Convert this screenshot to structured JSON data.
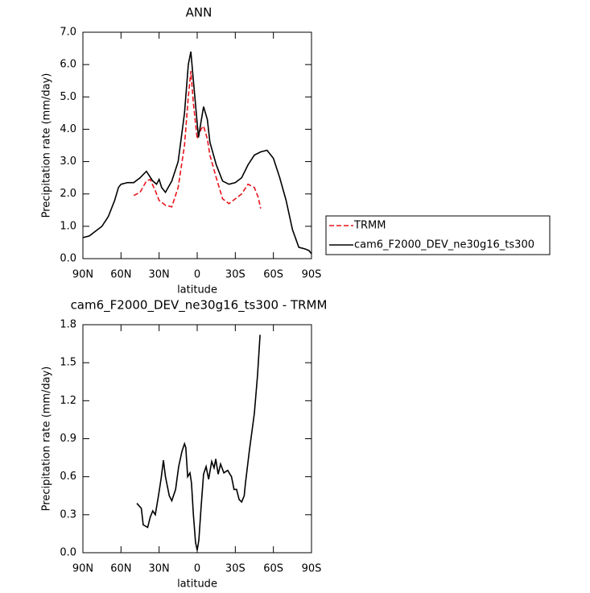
{
  "chart_data": [
    {
      "type": "line",
      "title": "ANN",
      "x_label": "latitude",
      "y_label": "Precipitation rate (mm/day)",
      "xlim": [
        90,
        -90
      ],
      "ylim": [
        0,
        7
      ],
      "xticks": [
        {
          "value": 90,
          "label": "90N"
        },
        {
          "value": 60,
          "label": "60N"
        },
        {
          "value": 30,
          "label": "30N"
        },
        0,
        {
          "value": -30,
          "label": "30S"
        },
        {
          "value": -60,
          "label": "60S"
        },
        {
          "value": -90,
          "label": "90S"
        }
      ],
      "yticks": [
        {
          "value": 0,
          "label": "0.0"
        },
        {
          "value": 1,
          "label": "1.0"
        },
        {
          "value": 2,
          "label": "2.0"
        },
        {
          "value": 3,
          "label": "3.0"
        },
        {
          "value": 4,
          "label": "4.0"
        },
        {
          "value": 5,
          "label": "5.0"
        },
        {
          "value": 6,
          "label": "6.0"
        },
        {
          "value": 7,
          "label": "7.0"
        }
      ],
      "legend": "right",
      "series": [
        {
          "name": "TRMM",
          "color": "#e8141c",
          "dash": "dashed",
          "x": [
            50,
            45,
            40,
            37,
            33,
            30,
            25,
            20,
            15,
            10,
            7,
            5,
            3,
            0,
            -3,
            -5,
            -8,
            -10,
            -15,
            -20,
            -25,
            -30,
            -35,
            -40,
            -45,
            -48,
            -50
          ],
          "values": [
            1.95,
            2.05,
            2.4,
            2.45,
            2.1,
            1.8,
            1.65,
            1.6,
            2.2,
            3.5,
            5.0,
            5.8,
            4.8,
            3.7,
            4.0,
            4.1,
            3.7,
            3.2,
            2.5,
            1.85,
            1.7,
            1.85,
            2.0,
            2.3,
            2.2,
            1.9,
            1.55
          ]
        },
        {
          "name": "cam6_F2000_DEV_ne30g16_ts300",
          "color": "#000000",
          "dash": "solid",
          "x": [
            90,
            85,
            80,
            75,
            70,
            65,
            62,
            60,
            55,
            50,
            45,
            40,
            35,
            32,
            30,
            28,
            25,
            20,
            15,
            10,
            7,
            5,
            3,
            -1,
            -5,
            -8,
            -10,
            -15,
            -20,
            -25,
            -30,
            -35,
            -40,
            -45,
            -50,
            -55,
            -60,
            -65,
            -70,
            -75,
            -80,
            -85,
            -88,
            -90
          ],
          "values": [
            0.65,
            0.7,
            0.85,
            1.0,
            1.3,
            1.8,
            2.2,
            2.3,
            2.35,
            2.35,
            2.5,
            2.7,
            2.4,
            2.3,
            2.45,
            2.2,
            2.05,
            2.4,
            3.0,
            4.5,
            6.0,
            6.4,
            5.5,
            3.75,
            4.7,
            4.3,
            3.6,
            2.9,
            2.4,
            2.3,
            2.35,
            2.5,
            2.9,
            3.2,
            3.3,
            3.35,
            3.1,
            2.5,
            1.8,
            0.9,
            0.35,
            0.3,
            0.25,
            0.15
          ]
        }
      ]
    },
    {
      "type": "line",
      "title": "cam6_F2000_DEV_ne30g16_ts300 - TRMM",
      "x_label": "latitude",
      "y_label": "Precipitation rate (mm/day)",
      "xlim": [
        90,
        -90
      ],
      "ylim": [
        0,
        1.8
      ],
      "xticks": [
        {
          "value": 90,
          "label": "90N"
        },
        {
          "value": 60,
          "label": "60N"
        },
        {
          "value": 30,
          "label": "30N"
        },
        0,
        {
          "value": -30,
          "label": "30S"
        },
        {
          "value": -60,
          "label": "60S"
        },
        {
          "value": -90,
          "label": "90S"
        }
      ],
      "yticks": [
        {
          "value": 0,
          "label": "0.0"
        },
        0.3,
        0.6,
        0.9,
        1.2,
        1.5,
        1.8
      ],
      "series": [
        {
          "color": "#000000",
          "dash": "solid",
          "x": [
            47.5,
            44,
            42.5,
            39,
            37,
            35,
            33,
            30.5,
            28.5,
            26.6,
            25,
            22,
            20,
            17,
            14.6,
            12,
            10,
            9,
            7.5,
            5.7,
            4.5,
            3,
            1.3,
            0,
            -1.3,
            -3,
            -5,
            -7,
            -9,
            -11.4,
            -13.3,
            -14.6,
            -16.5,
            -18.4,
            -21,
            -24,
            -27,
            -29,
            -31,
            -33,
            -35,
            -37,
            -38,
            -41,
            -45,
            -47.5,
            -49.5
          ],
          "values": [
            0.39,
            0.35,
            0.22,
            0.2,
            0.28,
            0.33,
            0.3,
            0.45,
            0.58,
            0.73,
            0.6,
            0.45,
            0.41,
            0.5,
            0.68,
            0.8,
            0.86,
            0.83,
            0.6,
            0.63,
            0.55,
            0.3,
            0.08,
            0.02,
            0.1,
            0.35,
            0.62,
            0.68,
            0.58,
            0.72,
            0.67,
            0.74,
            0.62,
            0.7,
            0.63,
            0.65,
            0.6,
            0.5,
            0.5,
            0.42,
            0.4,
            0.45,
            0.55,
            0.8,
            1.1,
            1.4,
            1.72
          ]
        }
      ]
    }
  ]
}
